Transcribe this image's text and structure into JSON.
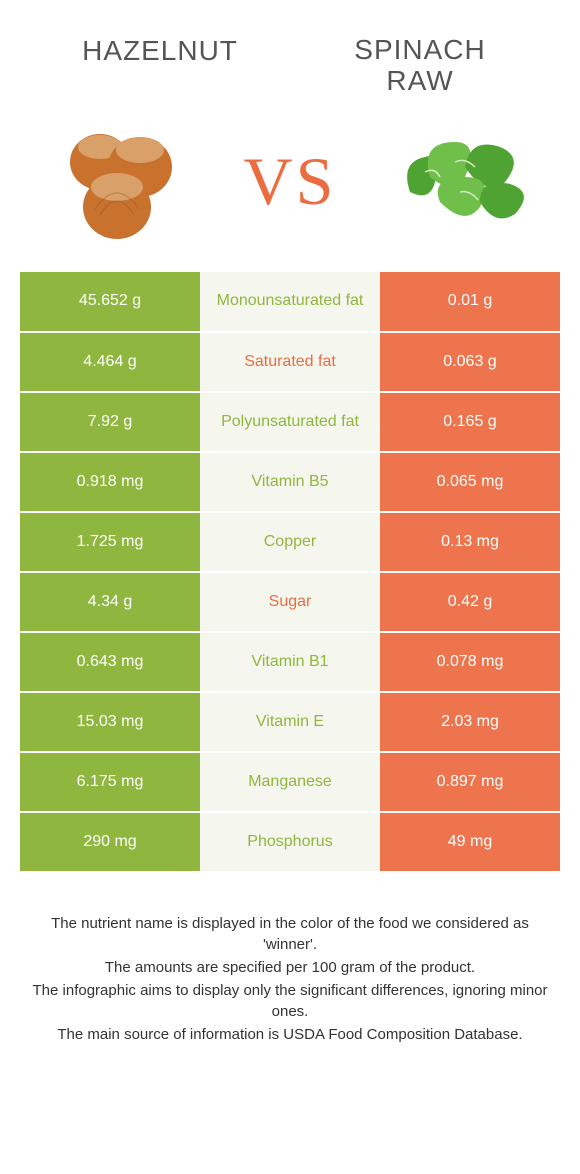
{
  "header": {
    "left_title": "Hazelnut",
    "right_title_line1": "Spinach",
    "right_title_line2": "raw",
    "vs_text": "VS"
  },
  "colors": {
    "left_bg": "#8fb63e",
    "right_bg": "#ed744d",
    "mid_bg": "#f5f7ee",
    "left_text_color": "#8fb63e",
    "right_text_color": "#ec6c42"
  },
  "rows": [
    {
      "left": "45.652 g",
      "label": "Monounsaturated fat",
      "right": "0.01 g",
      "winner": "left"
    },
    {
      "left": "4.464 g",
      "label": "Saturated fat",
      "right": "0.063 g",
      "winner": "right"
    },
    {
      "left": "7.92 g",
      "label": "Polyunsaturated fat",
      "right": "0.165 g",
      "winner": "left"
    },
    {
      "left": "0.918 mg",
      "label": "Vitamin B5",
      "right": "0.065 mg",
      "winner": "left"
    },
    {
      "left": "1.725 mg",
      "label": "Copper",
      "right": "0.13 mg",
      "winner": "left"
    },
    {
      "left": "4.34 g",
      "label": "Sugar",
      "right": "0.42 g",
      "winner": "right"
    },
    {
      "left": "0.643 mg",
      "label": "Vitamin B1",
      "right": "0.078 mg",
      "winner": "left"
    },
    {
      "left": "15.03 mg",
      "label": "Vitamin E",
      "right": "2.03 mg",
      "winner": "left"
    },
    {
      "left": "6.175 mg",
      "label": "Manganese",
      "right": "0.897 mg",
      "winner": "left"
    },
    {
      "left": "290 mg",
      "label": "Phosphorus",
      "right": "49 mg",
      "winner": "left"
    }
  ],
  "footer": {
    "line1": "The nutrient name is displayed in the color of the food we considered as 'winner'.",
    "line2": "The amounts are specified per 100 gram of the product.",
    "line3": "The infographic aims to display only the significant differences, ignoring minor ones.",
    "line4": "The main source of information is USDA Food Composition Database."
  }
}
